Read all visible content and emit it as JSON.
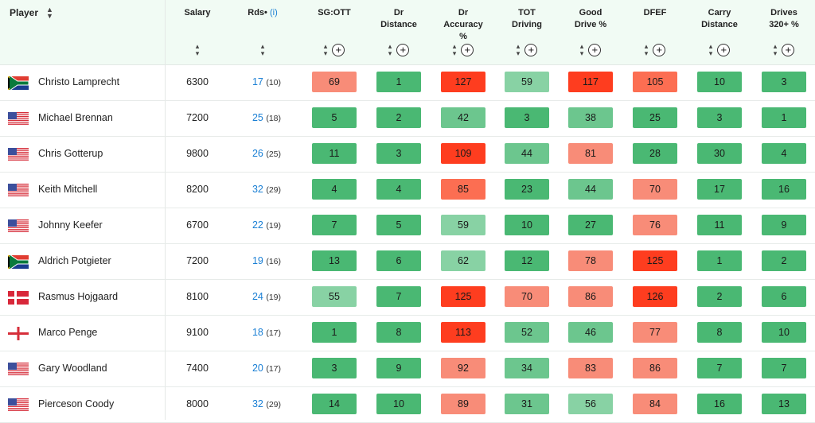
{
  "header": {
    "player": "Player",
    "columns": [
      {
        "key": "salary",
        "label": "Salary",
        "has_plus": false
      },
      {
        "key": "rds",
        "label": "Rds",
        "info": "(i)",
        "has_plus": false
      },
      {
        "key": "sgott",
        "label": "SG:OTT",
        "has_plus": true
      },
      {
        "key": "drdist",
        "label": "Dr\nDistance",
        "has_plus": true
      },
      {
        "key": "dracc",
        "label": "Dr\nAccuracy\n%",
        "has_plus": true
      },
      {
        "key": "totdrv",
        "label": "TOT\nDriving",
        "has_plus": true
      },
      {
        "key": "good",
        "label": "Good\nDrive %",
        "has_plus": true
      },
      {
        "key": "dfef",
        "label": "DFEF",
        "has_plus": true
      },
      {
        "key": "carry",
        "label": "Carry\nDistance",
        "has_plus": true
      },
      {
        "key": "d320",
        "label": "Drives\n320+ %",
        "has_plus": true
      }
    ]
  },
  "colors": {
    "dark_green": "#4ab873",
    "mid_green": "#6cc68e",
    "light_green": "#88d2a4",
    "salmon": "#f88c78",
    "orange_red": "#fc6e52",
    "red": "#fe3d1f"
  },
  "rows": [
    {
      "flag": "south-africa",
      "name": "Christo Lamprecht",
      "salary": "6300",
      "rds": "17",
      "rds_sub": "(10)",
      "stats": [
        "69",
        "1",
        "127",
        "59",
        "117",
        "105",
        "10",
        "3"
      ],
      "tones": [
        "salmon",
        "dark_green",
        "red",
        "light_green",
        "red",
        "orange_red",
        "dark_green",
        "dark_green"
      ]
    },
    {
      "flag": "usa",
      "name": "Michael Brennan",
      "salary": "7200",
      "rds": "25",
      "rds_sub": "(18)",
      "stats": [
        "5",
        "2",
        "42",
        "3",
        "38",
        "25",
        "3",
        "1"
      ],
      "tones": [
        "dark_green",
        "dark_green",
        "mid_green",
        "dark_green",
        "mid_green",
        "dark_green",
        "dark_green",
        "dark_green"
      ]
    },
    {
      "flag": "usa",
      "name": "Chris Gotterup",
      "salary": "9800",
      "rds": "26",
      "rds_sub": "(25)",
      "stats": [
        "11",
        "3",
        "109",
        "44",
        "81",
        "28",
        "30",
        "4"
      ],
      "tones": [
        "dark_green",
        "dark_green",
        "red",
        "mid_green",
        "salmon",
        "dark_green",
        "dark_green",
        "dark_green"
      ]
    },
    {
      "flag": "usa",
      "name": "Keith Mitchell",
      "salary": "8200",
      "rds": "32",
      "rds_sub": "(29)",
      "stats": [
        "4",
        "4",
        "85",
        "23",
        "44",
        "70",
        "17",
        "16"
      ],
      "tones": [
        "dark_green",
        "dark_green",
        "orange_red",
        "dark_green",
        "mid_green",
        "salmon",
        "dark_green",
        "dark_green"
      ]
    },
    {
      "flag": "usa",
      "name": "Johnny Keefer",
      "salary": "6700",
      "rds": "22",
      "rds_sub": "(19)",
      "stats": [
        "7",
        "5",
        "59",
        "10",
        "27",
        "76",
        "11",
        "9"
      ],
      "tones": [
        "dark_green",
        "dark_green",
        "light_green",
        "dark_green",
        "dark_green",
        "salmon",
        "dark_green",
        "dark_green"
      ]
    },
    {
      "flag": "south-africa",
      "name": "Aldrich Potgieter",
      "salary": "7200",
      "rds": "19",
      "rds_sub": "(16)",
      "stats": [
        "13",
        "6",
        "62",
        "12",
        "78",
        "125",
        "1",
        "2"
      ],
      "tones": [
        "dark_green",
        "dark_green",
        "light_green",
        "dark_green",
        "salmon",
        "red",
        "dark_green",
        "dark_green"
      ]
    },
    {
      "flag": "denmark",
      "name": "Rasmus Hojgaard",
      "salary": "8100",
      "rds": "24",
      "rds_sub": "(19)",
      "stats": [
        "55",
        "7",
        "125",
        "70",
        "86",
        "126",
        "2",
        "6"
      ],
      "tones": [
        "light_green",
        "dark_green",
        "red",
        "salmon",
        "salmon",
        "red",
        "dark_green",
        "dark_green"
      ]
    },
    {
      "flag": "england",
      "name": "Marco Penge",
      "salary": "9100",
      "rds": "18",
      "rds_sub": "(17)",
      "stats": [
        "1",
        "8",
        "113",
        "52",
        "46",
        "77",
        "8",
        "10"
      ],
      "tones": [
        "dark_green",
        "dark_green",
        "red",
        "mid_green",
        "mid_green",
        "salmon",
        "dark_green",
        "dark_green"
      ]
    },
    {
      "flag": "usa",
      "name": "Gary Woodland",
      "salary": "7400",
      "rds": "20",
      "rds_sub": "(17)",
      "stats": [
        "3",
        "9",
        "92",
        "34",
        "83",
        "86",
        "7",
        "7"
      ],
      "tones": [
        "dark_green",
        "dark_green",
        "salmon",
        "mid_green",
        "salmon",
        "salmon",
        "dark_green",
        "dark_green"
      ]
    },
    {
      "flag": "usa",
      "name": "Pierceson Coody",
      "salary": "8000",
      "rds": "32",
      "rds_sub": "(29)",
      "stats": [
        "14",
        "10",
        "89",
        "31",
        "56",
        "84",
        "16",
        "13"
      ],
      "tones": [
        "dark_green",
        "dark_green",
        "salmon",
        "mid_green",
        "light_green",
        "salmon",
        "dark_green",
        "dark_green"
      ]
    }
  ]
}
